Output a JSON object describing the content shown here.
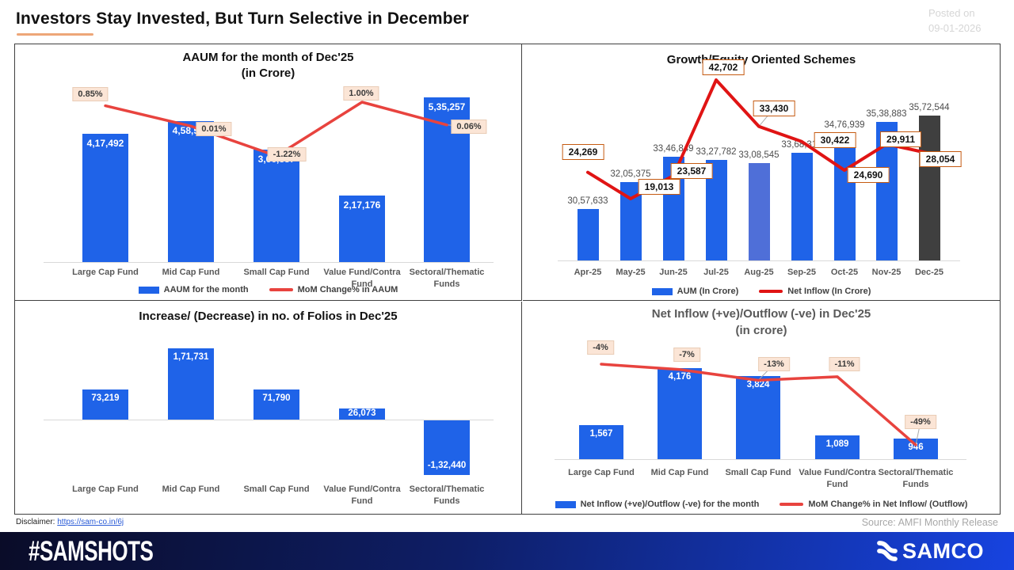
{
  "header": {
    "title": "Investors Stay Invested, But Turn Selective in December",
    "posted_on": "Posted on",
    "posted_date": "09-01-2026"
  },
  "colors": {
    "bar_blue": "#1f63e8",
    "bar_blue_light": "#4f6fd8",
    "bar_dark": "#3f3f3f",
    "line_red": "#e8433e",
    "line_red_bright": "#e01414",
    "label_peach_bg": "#fbe5d6",
    "label_box_border": "#c55a11",
    "title_underline": "#eda678"
  },
  "chart_data": [
    {
      "type": "bar+line",
      "title": "AAUM for the month of Dec'25",
      "subtitle": "(in Crore)",
      "categories": [
        "Large Cap Fund",
        "Mid Cap Fund",
        "Small Cap Fund",
        "Value Fund/Contra Fund",
        "Sectoral/Thematic Funds"
      ],
      "bars": {
        "name": "AAUM for the month",
        "values": [
          417492,
          458516,
          366387,
          217176,
          535257
        ],
        "labels": [
          "4,17,492",
          "4,58,516",
          "3,66,387",
          "2,17,176",
          "5,35,257"
        ]
      },
      "line": {
        "name": "MoM Change% in AAUM",
        "values": [
          0.85,
          0.01,
          -1.22,
          1.0,
          0.06
        ],
        "labels": [
          "0.85%",
          "0.01%",
          "-1.22%",
          "1.00%",
          "0.06%"
        ]
      },
      "legend": [
        "AAUM for the month",
        "MoM Change% in AAUM"
      ]
    },
    {
      "type": "bar+line",
      "title": "Growth/Equity Oriented Schemes",
      "categories": [
        "Apr-25",
        "May-25",
        "Jun-25",
        "Jul-25",
        "Aug-25",
        "Sep-25",
        "Oct-25",
        "Nov-25",
        "Dec-25"
      ],
      "bars": {
        "name": "AUM (In Crore)",
        "values": [
          3057633,
          3205375,
          3346849,
          3327782,
          3308545,
          3368315,
          3476939,
          3538883,
          3572544
        ],
        "labels": [
          "30,57,633",
          "32,05,375",
          "33,46,849",
          "33,27,782",
          "33,08,545",
          "33,68,315",
          "34,76,939",
          "35,38,883",
          "35,72,544"
        ],
        "colors": [
          "#1f63e8",
          "#1f63e8",
          "#1f63e8",
          "#1f63e8",
          "#4f6fd8",
          "#1f63e8",
          "#1f63e8",
          "#1f63e8",
          "#3f3f3f"
        ]
      },
      "line": {
        "name": "Net Inflow (In Crore)",
        "values": [
          24269,
          19013,
          23587,
          42702,
          33430,
          30422,
          24690,
          29911,
          28054
        ],
        "labels": [
          "24,269",
          "19,013",
          "23,587",
          "42,702",
          "33,430",
          "30,422",
          "24,690",
          "29,911",
          "28,054"
        ]
      },
      "legend": [
        "AUM (In Crore)",
        "Net Inflow (In Crore)"
      ]
    },
    {
      "type": "bar",
      "title": "Increase/ (Decrease) in no. of Folios in Dec'25",
      "categories": [
        "Large Cap Fund",
        "Mid Cap Fund",
        "Small Cap Fund",
        "Value Fund/Contra Fund",
        "Sectoral/Thematic Funds"
      ],
      "bars": {
        "name": "Increase/(Decrease) in no. of Folios",
        "values": [
          73219,
          171731,
          71790,
          26073,
          -132440
        ],
        "labels": [
          "73,219",
          "1,71,731",
          "71,790",
          "26,073",
          "-1,32,440"
        ]
      }
    },
    {
      "type": "bar+line",
      "title": "Net Inflow (+ve)/Outflow (-ve) in Dec'25",
      "subtitle": "(in crore)",
      "categories": [
        "Large Cap Fund",
        "Mid Cap Fund",
        "Small Cap Fund",
        "Value Fund/Contra Fund",
        "Sectoral/Thematic Funds"
      ],
      "bars": {
        "name": "Net Inflow (+ve)/Outflow (-ve) for the month",
        "values": [
          1567,
          4176,
          3824,
          1089,
          946
        ],
        "labels": [
          "1,567",
          "4,176",
          "3,824",
          "1,089",
          "946"
        ]
      },
      "line": {
        "name": "MoM Change% in Net Inflow/ (Outflow)",
        "values": [
          -4,
          -7,
          -13,
          -11,
          -49
        ],
        "labels": [
          "-4%",
          "-7%",
          "-13%",
          "-11%",
          "-49%"
        ]
      },
      "legend": [
        "Net Inflow (+ve)/Outflow (-ve) for the month",
        "MoM Change% in Net Inflow/ (Outflow)"
      ]
    }
  ],
  "footer": {
    "disclaimer_label": "Disclaimer:",
    "disclaimer_link": "https://sam-co.in/6j",
    "source": "Source: AMFI Monthly Release",
    "hashtag": "#SAMSHOTS",
    "brand": "SAMCO"
  }
}
